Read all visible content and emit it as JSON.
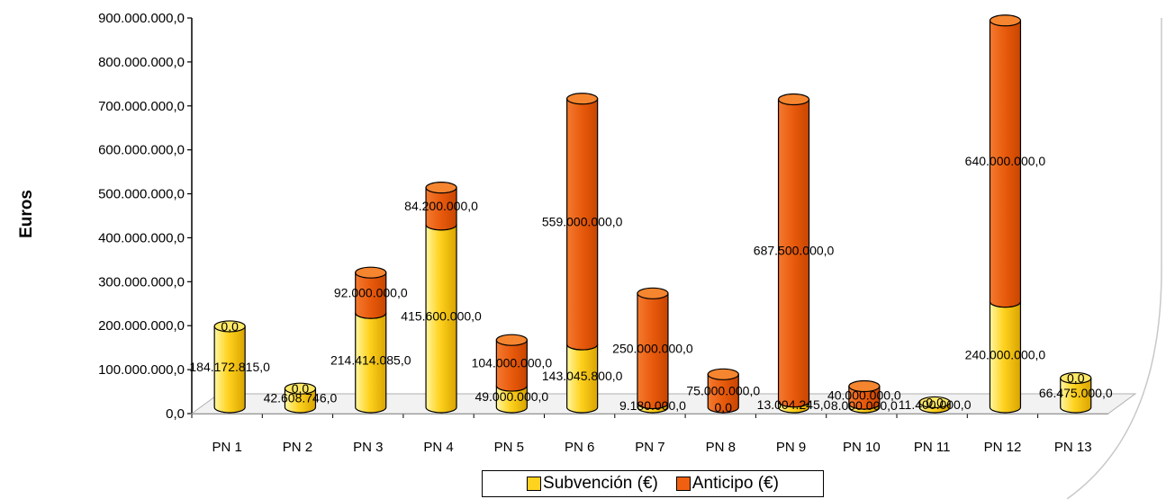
{
  "chart_data": {
    "type": "bar",
    "stacked": true,
    "three_d_cylinders": true,
    "ylabel": "Euros",
    "ylim": [
      0,
      900000000
    ],
    "yticks": [
      "0,0",
      "100.000.000,0",
      "200.000.000,0",
      "300.000.000,0",
      "400.000.000,0",
      "500.000.000,0",
      "600.000.000,0",
      "700.000.000,0",
      "800.000.000,0",
      "900.000.000,0"
    ],
    "categories": [
      "PN 1",
      "PN 2",
      "PN 3",
      "PN 4",
      "PN 5",
      "PN 6",
      "PN 7",
      "PN 8",
      "PN 9",
      "PN 10",
      "PN 11",
      "PN 12",
      "PN 13"
    ],
    "series": [
      {
        "name": "Subvención (€)",
        "color": "#FFD21F",
        "values": [
          184172815,
          42608746,
          214414085,
          415600000,
          49000000,
          143045800,
          9180000,
          0,
          13004245,
          8000000,
          11400000,
          240000000,
          66475000
        ],
        "labels": [
          "184.172.815,0",
          "42.608.746,0",
          "214.414.085,0",
          "415.600.000,0",
          "49.000.000,0",
          "143.045.800,0",
          "9.180.000,0",
          "0,0",
          "13.004.245,0",
          "8.000.000,0",
          "11.400.000,0",
          "240.000.000,0",
          "66.475.000,0"
        ]
      },
      {
        "name": "Anticipo (€)",
        "color": "#F06010",
        "values": [
          0,
          0,
          92000000,
          84200000,
          104000000,
          559000000,
          250000000,
          75000000,
          687500000,
          40000000,
          0,
          640000000,
          0
        ],
        "labels": [
          "0,0",
          "0,0",
          "92.000.000,0",
          "84.200.000,0",
          "104.000.000,0",
          "559.000.000,0",
          "250.000.000,0",
          "75.000.000,0",
          "687.500.000,0",
          "40.000.000,0",
          "0,0",
          "640.000.000,0",
          "0,0"
        ]
      }
    ],
    "legend": "bottom"
  }
}
